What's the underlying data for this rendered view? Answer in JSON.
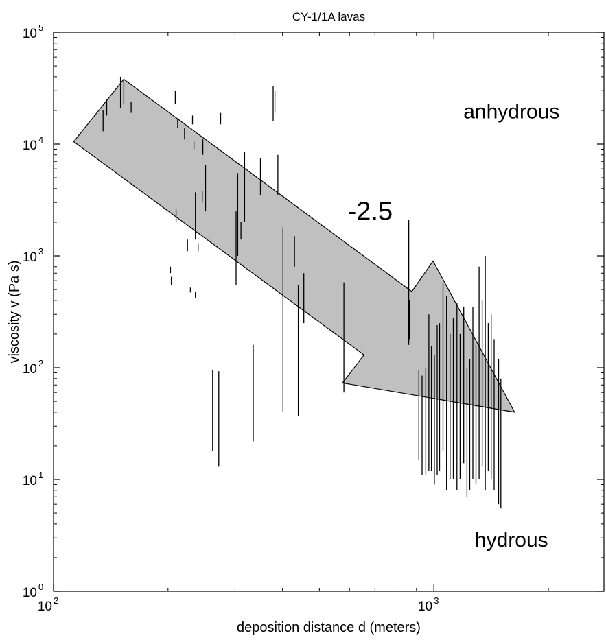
{
  "chart_data": {
    "type": "scatter",
    "title": "CY-1/1A lavas",
    "xlabel": "deposition distance d (meters)",
    "ylabel": "viscosity v (Pa s)",
    "x_scale": "log",
    "y_scale": "log",
    "xlim": [
      100,
      2800
    ],
    "ylim": [
      1,
      100000
    ],
    "grid": false,
    "x_ticks": [
      {
        "value": 100,
        "base": "10",
        "exp": "2"
      },
      {
        "value": 1000,
        "base": "10",
        "exp": "3"
      }
    ],
    "y_ticks": [
      {
        "value": 1,
        "base": "10",
        "exp": "0"
      },
      {
        "value": 10,
        "base": "10",
        "exp": "1"
      },
      {
        "value": 100,
        "base": "10",
        "exp": "2"
      },
      {
        "value": 1000,
        "base": "10",
        "exp": "3"
      },
      {
        "value": 10000,
        "base": "10",
        "exp": "4"
      },
      {
        "value": 100000,
        "base": "10",
        "exp": "5"
      }
    ],
    "annotations": [
      {
        "text": "anhydrous",
        "x": 1600,
        "y": 17000
      },
      {
        "text": "hydrous",
        "x": 1600,
        "y": 2.5
      },
      {
        "text": "-2.5",
        "x": 680,
        "y": 2100
      }
    ],
    "arrow": {
      "label": "-2.5",
      "fill": "#c0c0c0",
      "outline": [
        [
          113,
          10500
        ],
        [
          153,
          38000
        ],
        [
          875,
          480
        ],
        [
          995,
          900
        ],
        [
          1630,
          40
        ],
        [
          575,
          73
        ],
        [
          655,
          130
        ]
      ]
    },
    "ranges": [
      [
        135,
        13000,
        20000
      ],
      [
        138,
        18000,
        25000
      ],
      [
        150,
        21000,
        40000
      ],
      [
        153,
        23000,
        37000
      ],
      [
        160,
        19000,
        24000
      ],
      [
        209,
        23000,
        30000
      ],
      [
        212,
        14000,
        17000
      ],
      [
        221,
        11000,
        14000
      ],
      [
        232,
        15000,
        18000
      ],
      [
        210,
        2000,
        2600
      ],
      [
        203,
        700,
        800
      ],
      [
        204,
        550,
        650
      ],
      [
        225,
        1100,
        1400
      ],
      [
        229,
        470,
        520
      ],
      [
        236,
        420,
        480
      ],
      [
        240,
        1100,
        1300
      ],
      [
        234,
        9000,
        10500
      ],
      [
        236,
        1400,
        3700
      ],
      [
        246,
        3000,
        3800
      ],
      [
        247,
        8000,
        11000
      ],
      [
        251,
        2500,
        6500
      ],
      [
        262,
        18,
        95
      ],
      [
        272,
        13,
        93
      ],
      [
        275,
        15000,
        19000
      ],
      [
        302,
        550,
        2500
      ],
      [
        305,
        1000,
        5500
      ],
      [
        311,
        1400,
        2000
      ],
      [
        318,
        2000,
        8500
      ],
      [
        335,
        22,
        160
      ],
      [
        350,
        3500,
        7500
      ],
      [
        378,
        16000,
        33000
      ],
      [
        382,
        19000,
        30000
      ],
      [
        389,
        3500,
        8000
      ],
      [
        401,
        40,
        1800
      ],
      [
        430,
        800,
        1500
      ],
      [
        440,
        37,
        550
      ],
      [
        455,
        250,
        700
      ],
      [
        580,
        60,
        580
      ],
      [
        859,
        160,
        2100
      ],
      [
        862,
        180,
        400
      ],
      [
        913,
        15,
        95
      ],
      [
        931,
        11,
        85
      ],
      [
        952,
        11,
        100
      ],
      [
        970,
        12,
        300
      ],
      [
        985,
        12,
        155
      ],
      [
        1003,
        9,
        130
      ],
      [
        1020,
        11,
        240
      ],
      [
        1035,
        12,
        250
      ],
      [
        1057,
        18,
        570
      ],
      [
        1080,
        8,
        440
      ],
      [
        1103,
        10,
        200
      ],
      [
        1125,
        10,
        280
      ],
      [
        1150,
        8,
        380
      ],
      [
        1172,
        10,
        200
      ],
      [
        1198,
        14,
        350
      ],
      [
        1222,
        7,
        100
      ],
      [
        1243,
        8,
        120
      ],
      [
        1266,
        10,
        350
      ],
      [
        1290,
        9,
        160
      ],
      [
        1315,
        10,
        800
      ],
      [
        1340,
        13,
        400
      ],
      [
        1365,
        8,
        1000
      ],
      [
        1390,
        12,
        250
      ],
      [
        1415,
        10,
        300
      ],
      [
        1440,
        8,
        180
      ],
      [
        1480,
        6,
        120
      ],
      [
        1500,
        5.5,
        80
      ]
    ]
  }
}
